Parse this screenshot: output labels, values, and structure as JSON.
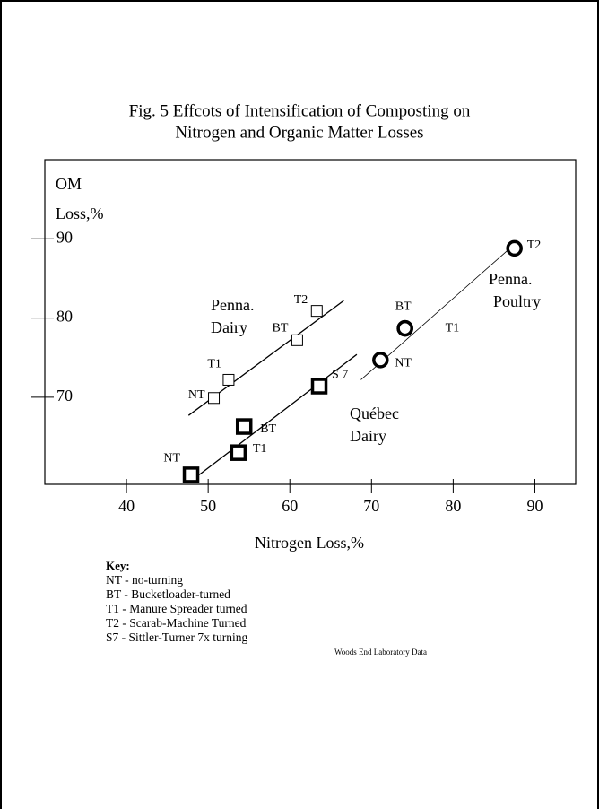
{
  "chart_data": {
    "type": "scatter",
    "title": [
      "Fig. 5 Effcots of Intensification of Composting on",
      "Nitrogen and Organic Matter Losses"
    ],
    "ylabel": [
      "OM",
      "Loss,%"
    ],
    "xlabel": "Nitrogen Loss,%",
    "xlim": [
      30,
      95
    ],
    "ylim": [
      59,
      100
    ],
    "xticks": [
      40,
      50,
      60,
      70,
      80,
      90
    ],
    "yticks": [
      70,
      80,
      90
    ],
    "color": "#000000",
    "series": [
      {
        "name": [
          "Penna.",
          "Dairy"
        ],
        "marker": "square",
        "weight": "thin",
        "labels": [
          "NT",
          "T1",
          "BT",
          "T2"
        ],
        "x": [
          50.7,
          52.5,
          60.9,
          63.3
        ],
        "values": [
          69.9,
          72.2,
          77.2,
          80.9
        ],
        "fit_x": [
          47.6,
          66.6
        ],
        "fit_y": [
          67.7,
          82.2
        ]
      },
      {
        "name": [
          "Québec",
          "Dairy"
        ],
        "marker": "square",
        "weight": "bold",
        "labels": [
          "NT",
          "T1",
          "BT",
          "S 7"
        ],
        "x": [
          47.9,
          53.7,
          54.4,
          63.6
        ],
        "values": [
          60.2,
          63.0,
          66.3,
          71.4
        ],
        "fit_x": [
          48.9,
          68.2
        ],
        "fit_y": [
          60.2,
          75.4
        ]
      },
      {
        "name": [
          "Penna.",
          "Poultry"
        ],
        "marker": "circle",
        "weight": "bold",
        "labels": [
          "NT",
          "BT",
          "T1",
          "T2"
        ],
        "x": [
          71.1,
          74.1,
          74.1,
          87.5
        ],
        "values": [
          74.7,
          78.7,
          78.7,
          88.8
        ],
        "fit_x": [
          68.7,
          87.5
        ],
        "fit_y": [
          72.2,
          89.3
        ]
      }
    ],
    "key": {
      "title": "Key:",
      "items": [
        "NT - no-turning",
        "BT - Bucketloader-turned",
        "T1 - Manure Spreader turned",
        "T2 - Scarab-Machine Turned",
        "S7 - Sittler-Turner 7x turning"
      ]
    },
    "source": "Woods End Laboratory Data"
  }
}
